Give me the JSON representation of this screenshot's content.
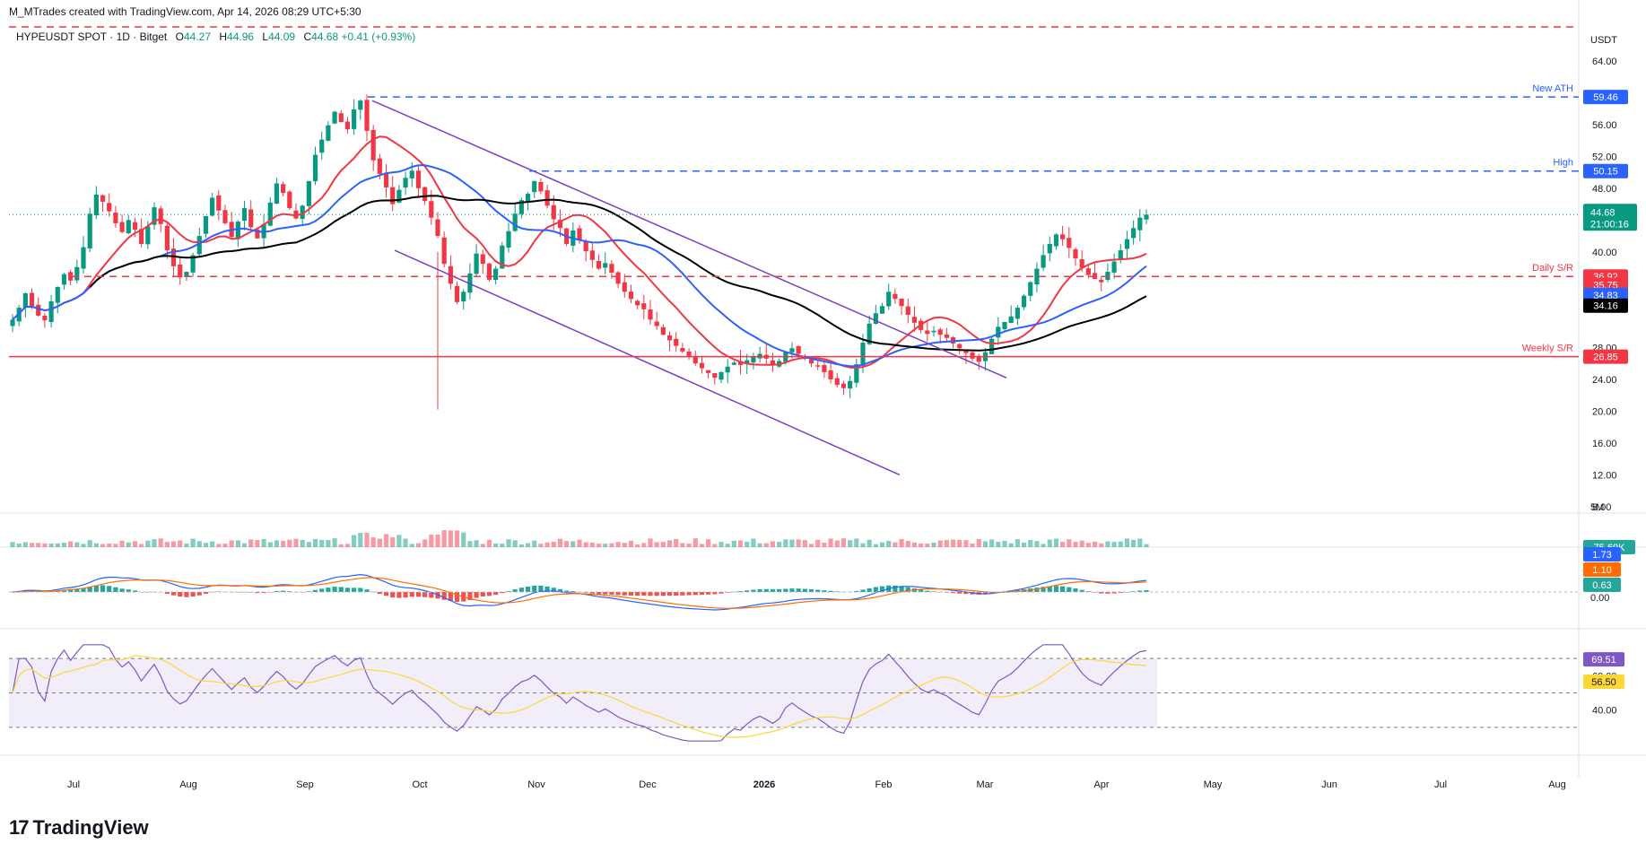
{
  "credit": "M_MTrades created with TradingView.com, Apr 14, 2026 08:29 UTC+5:30",
  "symbol": {
    "name": "HYPEUSDT SPOT · 1D · Bitget",
    "open_label": "O",
    "open": "44.27",
    "high_label": "H",
    "high": "44.96",
    "low_label": "L",
    "low": "44.09",
    "close_label": "C",
    "close": "44.68",
    "change": "+0.41 (+0.93%)"
  },
  "currency": "USDT",
  "brand": "TradingView",
  "brand_mark": "17",
  "chart_data": {
    "type": "candlestick",
    "price_axis": {
      "ticks": [
        "64.00",
        "56.00",
        "52.00",
        "48.00",
        "40.00",
        "28.00",
        "24.00",
        "20.00",
        "16.00",
        "12.00",
        "8.00"
      ],
      "ylim": [
        8,
        66
      ]
    },
    "time_axis": {
      "ticks": [
        "Jul",
        "Aug",
        "Sep",
        "Oct",
        "Nov",
        "Dec",
        "2026",
        "Feb",
        "Mar",
        "Apr",
        "May",
        "Jun",
        "Jul",
        "Aug"
      ]
    },
    "levels": [
      {
        "name": "New ATH",
        "value": "59.46",
        "color": "#2962ff",
        "style": "dashed"
      },
      {
        "name": "High",
        "value": "50.15",
        "color": "#2962ff",
        "style": "dashed"
      },
      {
        "name": "Daily S/R",
        "value": "36.92",
        "color": "#f23645",
        "style": "dashed"
      },
      {
        "name": "Weekly S/R",
        "value": "26.85",
        "color": "#f23645",
        "style": "solid"
      }
    ],
    "last_price": {
      "value": "44.68",
      "countdown": "21:00:16",
      "color": "#089981"
    },
    "ma_tags": [
      {
        "value": "35.75",
        "color": "#f23645"
      },
      {
        "value": "34.83",
        "color": "#2962ff"
      },
      {
        "value": "34.16",
        "color": "#000000"
      }
    ],
    "top_red_line": "dashed",
    "volume": {
      "axis_label": "5M",
      "last": "75.69K"
    },
    "macd": {
      "macd": "1.73",
      "signal": "1.10",
      "histogram": "0.63",
      "zero_label": "0.00"
    },
    "rsi": {
      "rsi": "69.51",
      "ma": "56.50",
      "ticks": [
        "60.00",
        "40.00"
      ],
      "band": [
        30,
        70
      ]
    },
    "closes": [
      31.5,
      33.0,
      34.8,
      33.2,
      32.0,
      31.4,
      33.8,
      35.6,
      37.2,
      36.4,
      38.1,
      40.6,
      44.8,
      47.2,
      46.3,
      45.1,
      43.6,
      42.5,
      44.0,
      42.8,
      41.0,
      43.2,
      45.6,
      43.5,
      40.2,
      38.2,
      36.8,
      37.5,
      39.6,
      42.0,
      44.5,
      46.8,
      45.2,
      43.6,
      41.9,
      43.8,
      45.5,
      43.1,
      41.7,
      43.5,
      46.2,
      48.6,
      47.4,
      45.5,
      44.2,
      45.8,
      48.9,
      52.2,
      54.1,
      55.9,
      57.6,
      56.3,
      55.4,
      57.9,
      59.0,
      55.2,
      51.5,
      49.8,
      48.1,
      46.0,
      47.8,
      49.3,
      50.2,
      48.0,
      46.4,
      44.3,
      42.0,
      38.5,
      36.0,
      33.7,
      35.0,
      37.3,
      39.8,
      38.5,
      36.5,
      37.9,
      40.8,
      42.6,
      44.8,
      46.5,
      47.3,
      48.9,
      47.6,
      45.8,
      44.1,
      43.0,
      41.0,
      42.7,
      41.5,
      40.1,
      39.0,
      37.9,
      38.6,
      37.4,
      36.0,
      35.0,
      34.1,
      33.3,
      32.8,
      31.5,
      30.7,
      29.6,
      28.9,
      28.2,
      27.5,
      26.8,
      26.0,
      25.4,
      24.8,
      24.2,
      24.9,
      25.6,
      26.1,
      25.8,
      26.4,
      26.9,
      27.2,
      26.6,
      25.9,
      26.3,
      27.4,
      27.9,
      27.2,
      26.6,
      26.0,
      25.6,
      24.9,
      24.0,
      23.3,
      22.9,
      23.8,
      25.9,
      28.6,
      31.0,
      32.3,
      33.2,
      35.0,
      34.1,
      33.2,
      32.1,
      31.1,
      30.2,
      29.7,
      30.1,
      29.6,
      29.2,
      28.5,
      27.9,
      27.3,
      26.6,
      26.2,
      27.4,
      29.1,
      30.6,
      31.2,
      31.9,
      33.0,
      34.5,
      36.2,
      37.9,
      39.6,
      41.0,
      42.2,
      41.6,
      40.5,
      39.2,
      38.0,
      37.1,
      36.6,
      36.2,
      37.5,
      38.8,
      40.2,
      41.6,
      43.0,
      44.3,
      44.68
    ],
    "sma50": [],
    "sma100": [],
    "sma200": []
  }
}
